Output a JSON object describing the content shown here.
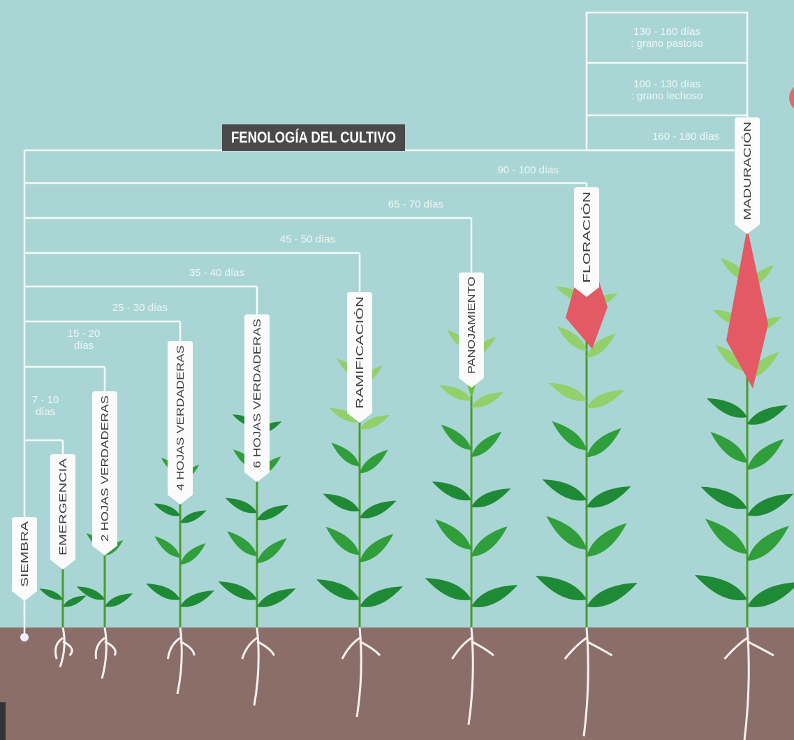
{
  "title": "FENOLOGÍA DEL CULTIVO",
  "stages": [
    "SIEMBRA",
    "EMERGENCIA",
    "2 HOJAS VERDADERAS",
    "4 HOJAS VERDADERAS",
    "6 HOJAS VERDADERAS",
    "RAMIFICACIÓN",
    "PANOJAMIENTO",
    "FLORACIÓN",
    "MADURACIÓN"
  ],
  "durations": [
    {
      "lines": [
        "7 - 10",
        "días"
      ]
    },
    {
      "lines": [
        "15 - 20",
        "días"
      ]
    },
    {
      "lines": [
        "25 - 30 días"
      ]
    },
    {
      "lines": [
        "35 - 40 días"
      ]
    },
    {
      "lines": [
        "45 - 50 días"
      ]
    },
    {
      "lines": [
        "65 - 70 días"
      ]
    },
    {
      "lines": [
        "90 - 100 días"
      ]
    },
    {
      "lines": [
        "160 - 180 días"
      ]
    }
  ],
  "maturation_notes": [
    {
      "lines": [
        "100 - 130 días",
        ": grano lechoso"
      ]
    },
    {
      "lines": [
        "130 - 160 días",
        ": grano pastoso"
      ]
    }
  ]
}
